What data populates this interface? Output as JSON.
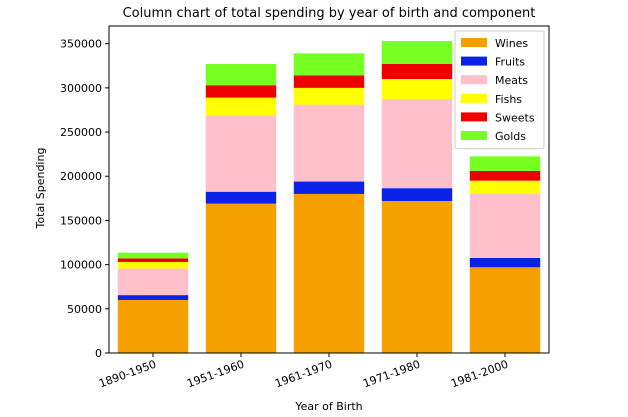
{
  "chart_data": {
    "type": "bar",
    "stacked": true,
    "title": "Column chart of total spending by year of birth and component",
    "xlabel": "Year of Birth",
    "ylabel": "Total Spending",
    "categories": [
      "1890-1950",
      "1951-1960",
      "1961-1970",
      "1971-1980",
      "1981-2000"
    ],
    "ylim": [
      0,
      370000
    ],
    "yticks": [
      0,
      50000,
      100000,
      150000,
      200000,
      250000,
      300000,
      350000
    ],
    "ytick_labels": [
      "0",
      "50000",
      "100000",
      "150000",
      "200000",
      "250000",
      "300000",
      "350000"
    ],
    "legend_position": "top-right",
    "series": [
      {
        "name": "Wines",
        "color": "#f5a000",
        "values": [
          60000,
          169000,
          180000,
          172000,
          97000
        ]
      },
      {
        "name": "Fruits",
        "color": "#0a22e6",
        "values": [
          5500,
          13500,
          14000,
          14500,
          10500
        ]
      },
      {
        "name": "Meats",
        "color": "#ffc0cb",
        "values": [
          30000,
          86500,
          87000,
          101000,
          72500
        ]
      },
      {
        "name": "Fishs",
        "color": "#ffff00",
        "values": [
          7500,
          20000,
          19000,
          22500,
          15000
        ]
      },
      {
        "name": "Sweets",
        "color": "#ee0000",
        "values": [
          4000,
          14000,
          14000,
          17000,
          11000
        ]
      },
      {
        "name": "Golds",
        "color": "#77ff22",
        "values": [
          6500,
          24000,
          25000,
          26000,
          16500
        ]
      }
    ]
  }
}
